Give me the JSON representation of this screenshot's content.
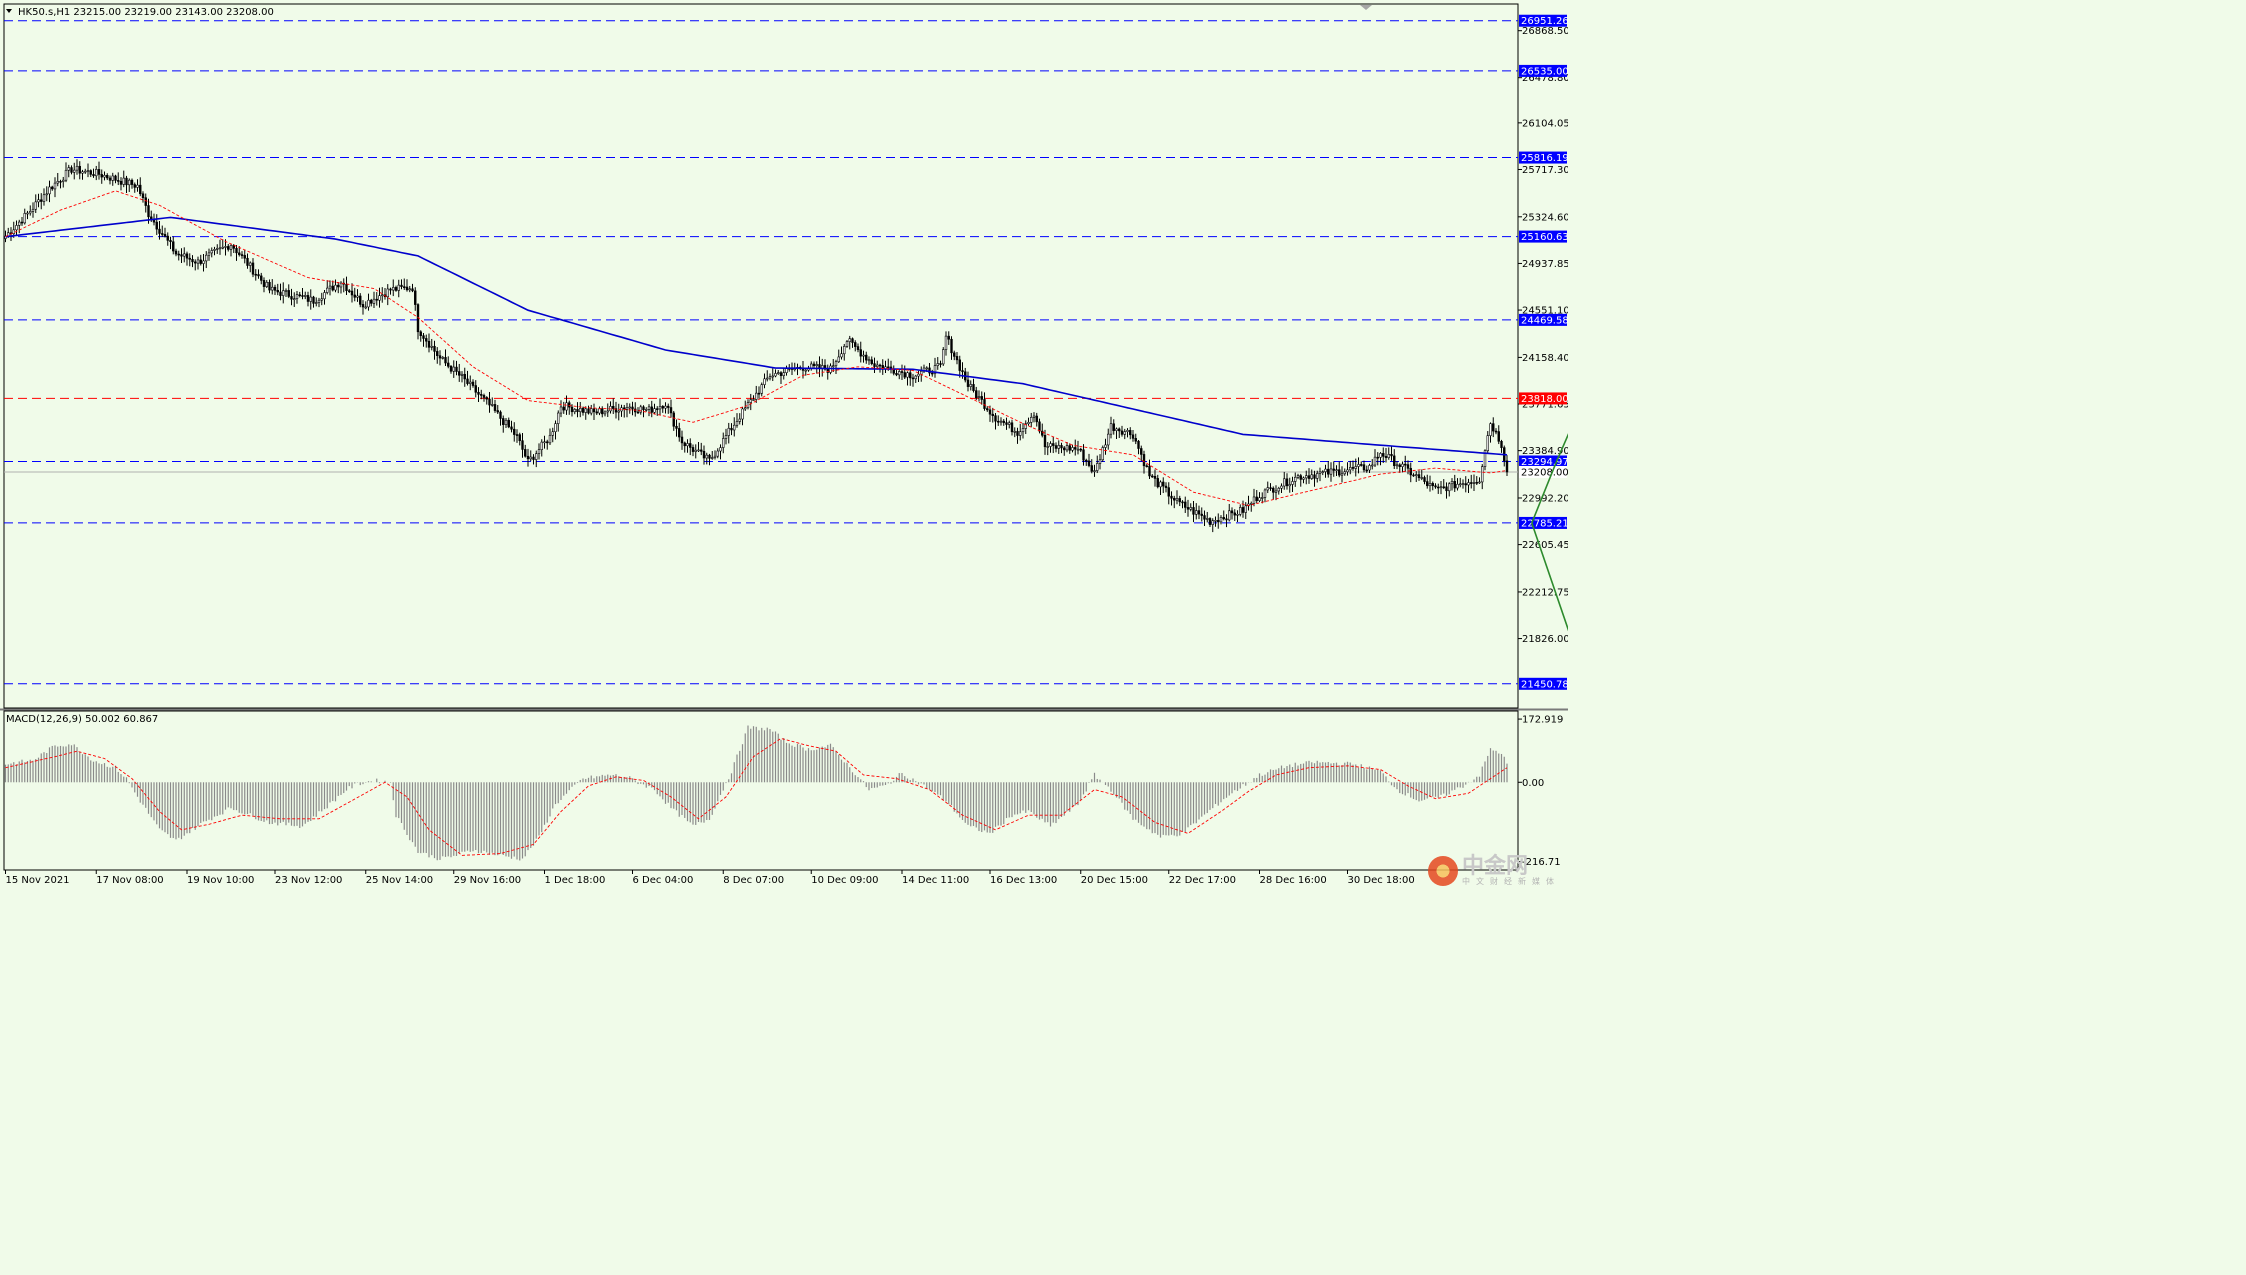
{
  "chart_data": [
    {
      "type": "candlestick",
      "symbol_label": "HK50.s,H1",
      "ohlc_label": "23215.00 23219.00 23143.00 23208.00",
      "ylim": [
        21250,
        27090
      ],
      "x_tick_labels": [
        "15 Nov 2021",
        "17 Nov 08:00",
        "19 Nov 10:00",
        "23 Nov 12:00",
        "25 Nov 14:00",
        "29 Nov 16:00",
        "1 Dec 18:00",
        "6 Dec 04:00",
        "8 Dec 07:00",
        "10 Dec 09:00",
        "14 Dec 11:00",
        "16 Dec 13:00",
        "20 Dec 15:00",
        "22 Dec 17:00",
        "28 Dec 16:00",
        "30 Dec 18:00"
      ],
      "y_tick_labels": [
        "26868.50",
        "26478.80",
        "26104.05",
        "25717.30",
        "25324.60",
        "24937.85",
        "24551.10",
        "24158.40",
        "23771.65",
        "23384.90",
        "22992.20",
        "22605.45",
        "22212.75",
        "21826.00"
      ],
      "price_close_path": [
        [
          0,
          25165
        ],
        [
          8,
          25350
        ],
        [
          16,
          25560
        ],
        [
          24,
          25720
        ],
        [
          34,
          25680
        ],
        [
          48,
          25580
        ],
        [
          52,
          25350
        ],
        [
          62,
          25020
        ],
        [
          70,
          24950
        ],
        [
          82,
          25100
        ],
        [
          96,
          24720
        ],
        [
          112,
          24630
        ],
        [
          122,
          24790
        ],
        [
          130,
          24600
        ],
        [
          140,
          24720
        ],
        [
          148,
          24740
        ],
        [
          150,
          24400
        ],
        [
          158,
          24150
        ],
        [
          166,
          23990
        ],
        [
          176,
          23760
        ],
        [
          186,
          23500
        ],
        [
          190,
          23290
        ],
        [
          198,
          23500
        ],
        [
          202,
          23760
        ],
        [
          214,
          23700
        ],
        [
          226,
          23750
        ],
        [
          234,
          23720
        ],
        [
          240,
          23780
        ],
        [
          246,
          23460
        ],
        [
          256,
          23300
        ],
        [
          266,
          23640
        ],
        [
          278,
          24010
        ],
        [
          290,
          24080
        ],
        [
          300,
          24060
        ],
        [
          306,
          24300
        ],
        [
          316,
          24100
        ],
        [
          330,
          24010
        ],
        [
          340,
          24080
        ],
        [
          342,
          24330
        ],
        [
          350,
          23930
        ],
        [
          360,
          23660
        ],
        [
          368,
          23540
        ],
        [
          374,
          23700
        ],
        [
          378,
          23420
        ],
        [
          390,
          23400
        ],
        [
          396,
          23200
        ],
        [
          402,
          23590
        ],
        [
          410,
          23520
        ],
        [
          416,
          23180
        ],
        [
          426,
          22960
        ],
        [
          438,
          22800
        ],
        [
          450,
          22890
        ],
        [
          456,
          23020
        ],
        [
          470,
          23170
        ],
        [
          480,
          23200
        ],
        [
          496,
          23250
        ],
        [
          500,
          23370
        ],
        [
          510,
          23220
        ],
        [
          520,
          23060
        ],
        [
          530,
          23120
        ],
        [
          536,
          23150
        ],
        [
          538,
          23400
        ],
        [
          540,
          23620
        ],
        [
          544,
          23440
        ],
        [
          546,
          23208
        ]
      ],
      "moving_averages": [
        {
          "name": "slow MA",
          "color": "#0000cc",
          "path": [
            [
              0,
              25160
            ],
            [
              60,
              25320
            ],
            [
              120,
              25140
            ],
            [
              150,
              25000
            ],
            [
              190,
              24550
            ],
            [
              240,
              24220
            ],
            [
              280,
              24070
            ],
            [
              330,
              24060
            ],
            [
              370,
              23940
            ],
            [
              410,
              23730
            ],
            [
              450,
              23520
            ],
            [
              500,
              23430
            ],
            [
              546,
              23350
            ]
          ]
        },
        {
          "name": "fast MA",
          "color": "#ff0000",
          "path": [
            [
              0,
              25160
            ],
            [
              20,
              25380
            ],
            [
              40,
              25540
            ],
            [
              56,
              25420
            ],
            [
              80,
              25120
            ],
            [
              110,
              24820
            ],
            [
              134,
              24730
            ],
            [
              150,
              24490
            ],
            [
              170,
              24080
            ],
            [
              190,
              23800
            ],
            [
              212,
              23740
            ],
            [
              230,
              23720
            ],
            [
              250,
              23620
            ],
            [
              270,
              23760
            ],
            [
              290,
              24010
            ],
            [
              310,
              24080
            ],
            [
              330,
              24050
            ],
            [
              350,
              23830
            ],
            [
              370,
              23610
            ],
            [
              388,
              23430
            ],
            [
              410,
              23350
            ],
            [
              432,
              23040
            ],
            [
              452,
              22930
            ],
            [
              476,
              23060
            ],
            [
              500,
              23190
            ],
            [
              520,
              23240
            ],
            [
              540,
              23200
            ],
            [
              546,
              23220
            ]
          ]
        }
      ],
      "horizontal_levels": [
        {
          "value": 26951.26,
          "label": "26951.26",
          "color": "#0000ff",
          "style": "dashed"
        },
        {
          "value": 26535.0,
          "label": "26535.00",
          "color": "#0000ff",
          "style": "dashed"
        },
        {
          "value": 25816.19,
          "label": "25816.19",
          "color": "#0000ff",
          "style": "dashed"
        },
        {
          "value": 25160.63,
          "label": "25160.63",
          "color": "#0000ff",
          "style": "dashed"
        },
        {
          "value": 24469.58,
          "label": "24469.58",
          "color": "#0000ff",
          "style": "dashed"
        },
        {
          "value": 23818.0,
          "label": "23818.00",
          "color": "#ff0000",
          "style": "dashed"
        },
        {
          "value": 23294.97,
          "label": "23294.97",
          "color": "#0000ff",
          "style": "dashed"
        },
        {
          "value": 23208.0,
          "label": "23208.00",
          "color": "#000000",
          "style": "solid-grey"
        },
        {
          "value": 22785.21,
          "label": "22785.21",
          "color": "#0000ff",
          "style": "dashed"
        },
        {
          "value": 21450.78,
          "label": "21450.78",
          "color": "#0000ff",
          "style": "dashed"
        }
      ],
      "projection_arrows": [
        {
          "color": "#2d8a2d",
          "points": [
            [
              555,
              22785
            ],
            [
              564,
              23294
            ],
            [
              574,
              23818
            ]
          ]
        },
        {
          "color": "#2d8a2d",
          "points": [
            [
              555,
              22785
            ],
            [
              575,
              21450
            ]
          ]
        }
      ]
    },
    {
      "type": "bar",
      "indicator_label": "MACD(12,26,9) 50.002 60.867",
      "ylim": [
        -240,
        195
      ],
      "y_tick_labels": [
        "172.919",
        "0.00",
        "-216.71"
      ],
      "histogram_path": [
        [
          0,
          50
        ],
        [
          10,
          60
        ],
        [
          18,
          100
        ],
        [
          24,
          105
        ],
        [
          32,
          60
        ],
        [
          40,
          40
        ],
        [
          44,
          10
        ],
        [
          48,
          -40
        ],
        [
          56,
          -130
        ],
        [
          62,
          -160
        ],
        [
          72,
          -110
        ],
        [
          82,
          -70
        ],
        [
          96,
          -110
        ],
        [
          108,
          -120
        ],
        [
          118,
          -60
        ],
        [
          124,
          -20
        ],
        [
          128,
          -5
        ],
        [
          134,
          5
        ],
        [
          140,
          0
        ],
        [
          142,
          -90
        ],
        [
          150,
          -190
        ],
        [
          158,
          -210
        ],
        [
          164,
          -200
        ],
        [
          170,
          -185
        ],
        [
          180,
          -200
        ],
        [
          188,
          -210
        ],
        [
          194,
          -150
        ],
        [
          200,
          -60
        ],
        [
          210,
          10
        ],
        [
          220,
          20
        ],
        [
          226,
          15
        ],
        [
          230,
          0
        ],
        [
          236,
          -20
        ],
        [
          242,
          -70
        ],
        [
          250,
          -120
        ],
        [
          256,
          -100
        ],
        [
          264,
          30
        ],
        [
          270,
          150
        ],
        [
          278,
          145
        ],
        [
          284,
          110
        ],
        [
          292,
          90
        ],
        [
          300,
          100
        ],
        [
          306,
          50
        ],
        [
          314,
          -20
        ],
        [
          320,
          -10
        ],
        [
          326,
          25
        ],
        [
          334,
          -10
        ],
        [
          342,
          -50
        ],
        [
          350,
          -120
        ],
        [
          358,
          -140
        ],
        [
          366,
          -90
        ],
        [
          372,
          -80
        ],
        [
          380,
          -120
        ],
        [
          390,
          -60
        ],
        [
          396,
          20
        ],
        [
          402,
          -20
        ],
        [
          410,
          -100
        ],
        [
          420,
          -150
        ],
        [
          428,
          -140
        ],
        [
          436,
          -90
        ],
        [
          444,
          -40
        ],
        [
          450,
          -10
        ],
        [
          456,
          20
        ],
        [
          466,
          45
        ],
        [
          476,
          55
        ],
        [
          490,
          50
        ],
        [
          500,
          30
        ],
        [
          506,
          -20
        ],
        [
          514,
          -50
        ],
        [
          522,
          -40
        ],
        [
          530,
          -10
        ],
        [
          536,
          20
        ],
        [
          540,
          90
        ],
        [
          544,
          80
        ],
        [
          546,
          50
        ]
      ],
      "signal_path": [
        [
          0,
          40
        ],
        [
          18,
          70
        ],
        [
          26,
          85
        ],
        [
          36,
          65
        ],
        [
          46,
          10
        ],
        [
          56,
          -80
        ],
        [
          64,
          -130
        ],
        [
          74,
          -115
        ],
        [
          86,
          -90
        ],
        [
          100,
          -100
        ],
        [
          114,
          -100
        ],
        [
          126,
          -50
        ],
        [
          138,
          0
        ],
        [
          146,
          -40
        ],
        [
          154,
          -130
        ],
        [
          166,
          -200
        ],
        [
          180,
          -195
        ],
        [
          192,
          -170
        ],
        [
          202,
          -80
        ],
        [
          212,
          -10
        ],
        [
          222,
          15
        ],
        [
          232,
          5
        ],
        [
          242,
          -40
        ],
        [
          252,
          -100
        ],
        [
          262,
          -40
        ],
        [
          272,
          70
        ],
        [
          282,
          120
        ],
        [
          292,
          100
        ],
        [
          302,
          85
        ],
        [
          312,
          20
        ],
        [
          324,
          10
        ],
        [
          336,
          -20
        ],
        [
          348,
          -90
        ],
        [
          360,
          -130
        ],
        [
          372,
          -90
        ],
        [
          384,
          -90
        ],
        [
          396,
          -20
        ],
        [
          406,
          -40
        ],
        [
          418,
          -110
        ],
        [
          430,
          -140
        ],
        [
          442,
          -80
        ],
        [
          452,
          -25
        ],
        [
          462,
          20
        ],
        [
          474,
          40
        ],
        [
          488,
          45
        ],
        [
          500,
          35
        ],
        [
          510,
          -10
        ],
        [
          520,
          -45
        ],
        [
          532,
          -30
        ],
        [
          540,
          10
        ],
        [
          546,
          40
        ]
      ]
    }
  ],
  "watermark": {
    "text": "中金网",
    "sub": "中文财经新媒体",
    "color": "#c8c8c8"
  }
}
